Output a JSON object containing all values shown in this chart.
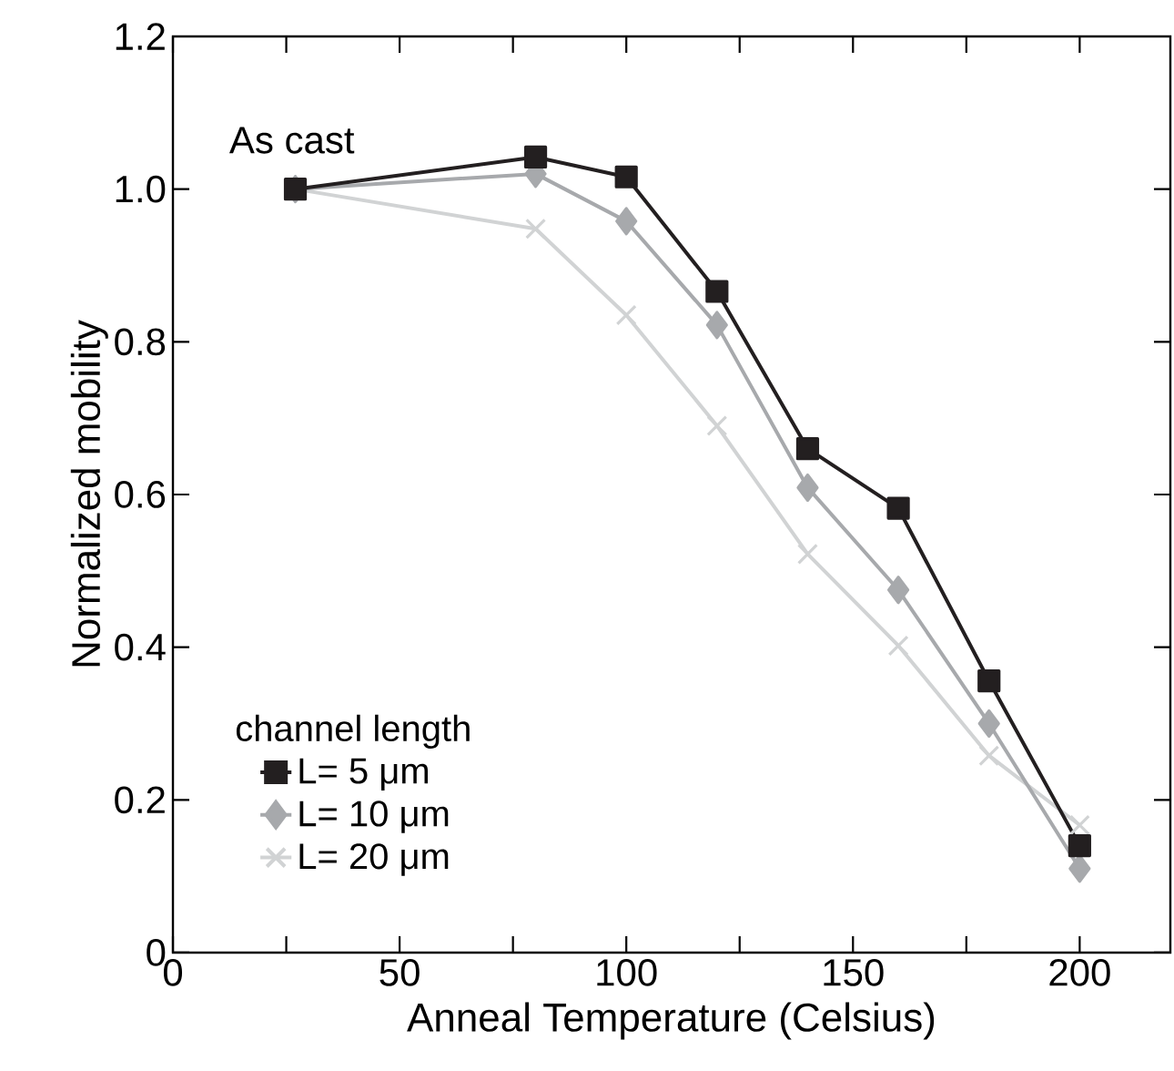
{
  "chart_data": {
    "type": "line",
    "xlabel": "Anneal Temperature (Celsius)",
    "ylabel": "Normalized mobility",
    "x": [
      27,
      80,
      100,
      120,
      140,
      160,
      180,
      200
    ],
    "series": [
      {
        "name": "L= 5 μm",
        "color": "#231f20",
        "marker": "square",
        "values": [
          1.0,
          1.042,
          1.016,
          0.866,
          0.66,
          0.582,
          0.356,
          0.14
        ]
      },
      {
        "name": "L= 10 μm",
        "color": "#a7a9ac",
        "marker": "diamond",
        "values": [
          1.0,
          1.02,
          0.958,
          0.822,
          0.609,
          0.475,
          0.3,
          0.11
        ]
      },
      {
        "name": "L= 20 μm",
        "color": "#d1d3d4",
        "marker": "cross",
        "values": [
          1.0,
          0.948,
          0.835,
          0.69,
          0.522,
          0.402,
          0.258,
          0.167
        ]
      }
    ],
    "legend_title": "channel length",
    "legend": "bottom left",
    "annotations": [
      "As cast"
    ],
    "xlim": [
      0,
      220
    ],
    "xticks": [
      0,
      {
        "value": 25,
        "label": null
      },
      50,
      {
        "value": 75,
        "label": null
      },
      100,
      {
        "value": 125,
        "label": null
      },
      150,
      {
        "value": 175,
        "label": null
      },
      200
    ],
    "ylim": [
      0,
      1.2
    ],
    "yticks": [
      {
        "value": 0,
        "label": "0"
      },
      0.2,
      0.4,
      0.6,
      0.8,
      {
        "value": 1.0,
        "label": "1.0"
      },
      1.2
    ],
    "grid": false
  }
}
